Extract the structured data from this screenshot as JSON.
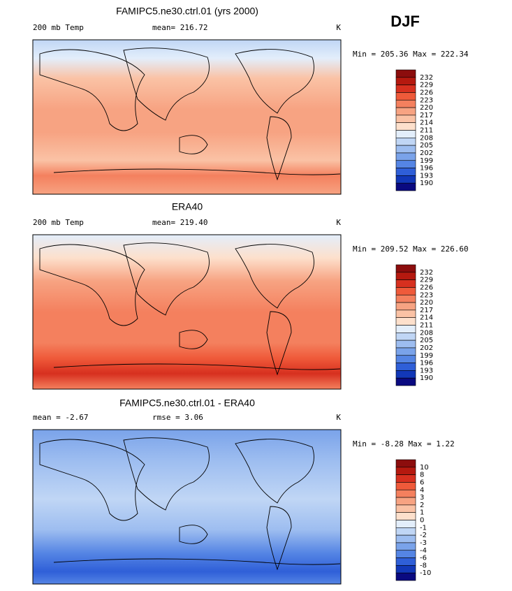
{
  "season": "DJF",
  "panels": [
    {
      "title": "FAMIPC5.ne30.ctrl.01 (yrs 2000)",
      "left": "200 mb Temp",
      "center": "mean= 216.72",
      "right": "K",
      "minmax": "Min = 205.36 Max = 222.34",
      "colorbar": {
        "labels": [
          "232",
          "229",
          "226",
          "223",
          "220",
          "217",
          "214",
          "211",
          "208",
          "205",
          "202",
          "199",
          "196",
          "193",
          "190"
        ],
        "colors": [
          "#8c0d0d",
          "#b5190f",
          "#d7301f",
          "#ef5a3a",
          "#f4805e",
          "#f7a382",
          "#fac2a5",
          "#fde0cc",
          "#e3eefb",
          "#c0d6f5",
          "#9dbdf0",
          "#7aa3ea",
          "#5585e4",
          "#2f5fd8",
          "#1238b8",
          "#0a0a80"
        ]
      }
    },
    {
      "title": "ERA40",
      "left": "200 mb Temp",
      "center": "mean= 219.40",
      "right": "K",
      "minmax": "Min = 209.52 Max = 226.60",
      "colorbar": {
        "labels": [
          "232",
          "229",
          "226",
          "223",
          "220",
          "217",
          "214",
          "211",
          "208",
          "205",
          "202",
          "199",
          "196",
          "193",
          "190"
        ],
        "colors": [
          "#8c0d0d",
          "#b5190f",
          "#d7301f",
          "#ef5a3a",
          "#f4805e",
          "#f7a382",
          "#fac2a5",
          "#fde0cc",
          "#e3eefb",
          "#c0d6f5",
          "#9dbdf0",
          "#7aa3ea",
          "#5585e4",
          "#2f5fd8",
          "#1238b8",
          "#0a0a80"
        ]
      }
    },
    {
      "title": "FAMIPC5.ne30.ctrl.01 - ERA40",
      "left": "mean =   -2.67",
      "center": "rmse =    3.06",
      "right": "K",
      "minmax": "Min =  -8.28 Max =    1.22",
      "colorbar": {
        "labels": [
          "10",
          "8",
          "6",
          "4",
          "3",
          "2",
          "1",
          "0",
          "-1",
          "-2",
          "-3",
          "-4",
          "-6",
          "-8",
          "-10"
        ],
        "colors": [
          "#8c0d0d",
          "#b5190f",
          "#d7301f",
          "#ef5a3a",
          "#f4805e",
          "#f7a382",
          "#fac2a5",
          "#fde0cc",
          "#e3eefb",
          "#c0d6f5",
          "#9dbdf0",
          "#7aa3ea",
          "#5585e4",
          "#2f5fd8",
          "#1238b8",
          "#0a0a80"
        ]
      }
    }
  ]
}
